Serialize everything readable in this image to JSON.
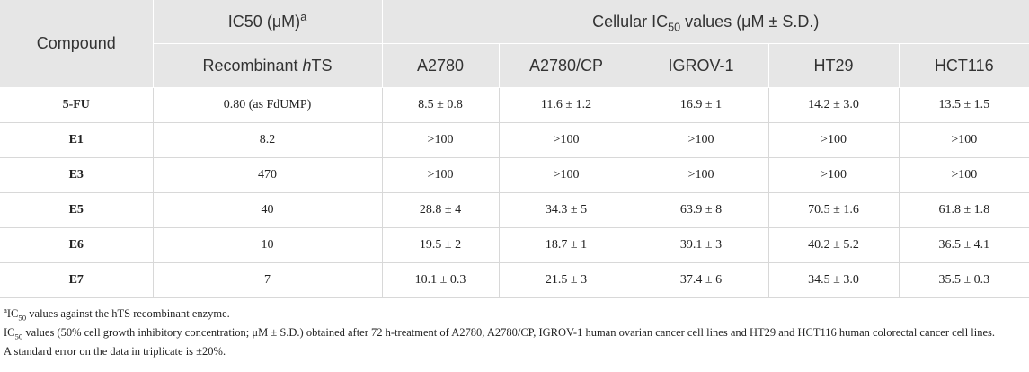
{
  "table": {
    "header": {
      "compound": "Compound",
      "ic50": {
        "text": "IC50 (μM)",
        "sup": "a"
      },
      "cellular": {
        "pre": "Cellular IC",
        "sub": "50",
        "post": " values (μM ± S.D.)"
      },
      "recombinant": {
        "pre": "Recombinant ",
        "em": "h",
        "post": "TS"
      },
      "cell_lines": [
        "A2780",
        "A2780/CP",
        "IGROV-1",
        "HT29",
        "HCT116"
      ]
    },
    "rows": [
      [
        "5-FU",
        "0.80 (as FdUMP)",
        "8.5 ± 0.8",
        "11.6 ± 1.2",
        "16.9 ± 1",
        "14.2 ± 3.0",
        "13.5 ± 1.5"
      ],
      [
        "E1",
        "8.2",
        ">100",
        ">100",
        ">100",
        ">100",
        ">100"
      ],
      [
        "E3",
        "470",
        ">100",
        ">100",
        ">100",
        ">100",
        ">100"
      ],
      [
        "E5",
        "40",
        "28.8 ± 4",
        "34.3 ± 5",
        "63.9 ± 8",
        "70.5 ± 1.6",
        "61.8 ± 1.8"
      ],
      [
        "E6",
        "10",
        "19.5 ± 2",
        "18.7 ± 1",
        "39.1 ± 3",
        "40.2 ± 5.2",
        "36.5 ± 4.1"
      ],
      [
        "E7",
        "7",
        "10.1 ± 0.3",
        "21.5 ± 3",
        "37.4 ± 6",
        "34.5 ± 3.0",
        "35.5 ± 0.3"
      ]
    ]
  },
  "footnotes": [
    {
      "sup": "a",
      "pre": "IC",
      "sub": "50",
      "post": " values against the hTS recombinant enzyme."
    },
    {
      "pre": "IC",
      "sub": "50",
      "post": " values (50% cell growth inhibitory concentration; μM ± S.D.) obtained after 72 h-treatment of A2780, A2780/CP, IGROV-1 human ovarian cancer cell lines and HT29 and HCT116 human colorectal cancer cell lines."
    },
    {
      "text": "A standard error on the data in triplicate is ±20%."
    }
  ]
}
